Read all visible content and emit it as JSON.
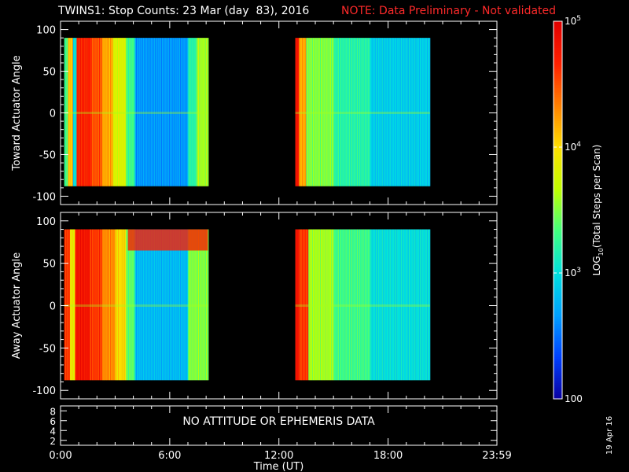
{
  "title": {
    "main": "TWINS1: Stop Counts: 23 Mar (day  83), 2016",
    "note": "NOTE: Data Preliminary - Not validated",
    "note_color": "#ff2a2a"
  },
  "side_date": "19 Apr 16",
  "x_axis": {
    "label": "Time (UT)",
    "ticks": [
      "0:00",
      "6:00",
      "12:00",
      "18:00",
      "23:59"
    ],
    "tick_values_hours": [
      0,
      6,
      12,
      18,
      23.98
    ],
    "range_hours": [
      0,
      23.98
    ]
  },
  "colorbar": {
    "label": "LOG10(Total Steps per Scan)",
    "label_base": "LOG",
    "label_sub": "10",
    "label_rest": "(Total Steps per Scan)",
    "scale": "log",
    "range": [
      100,
      100000
    ],
    "tick_labels": [
      {
        "base": "100",
        "exp": "",
        "value": 100
      },
      {
        "base": "10",
        "exp": "3",
        "value": 1000
      },
      {
        "base": "10",
        "exp": "4",
        "value": 10000
      },
      {
        "base": "10",
        "exp": "5",
        "value": 100000
      }
    ],
    "colormap": [
      "#0a00a0",
      "#0040ff",
      "#00a0ff",
      "#00e0e0",
      "#40ff80",
      "#c0ff00",
      "#ffe000",
      "#ff8000",
      "#ff2000",
      "#e00000"
    ]
  },
  "annotation": "NO ATTITUDE OR EPHEMERIS DATA",
  "chart_data": [
    {
      "type": "heatmap",
      "panel": "toward",
      "ylabel": "Toward Actuator Angle",
      "ylim": [
        -110,
        110
      ],
      "yticks": [
        100,
        50,
        0,
        -50,
        -100
      ],
      "data_extent_y": [
        -88,
        90
      ],
      "segments": [
        {
          "start": 0.2,
          "end": 8.1,
          "profile": [
            {
              "start": 0.2,
              "end": 0.4,
              "log": 3.3
            },
            {
              "start": 0.4,
              "end": 0.7,
              "log": 4.1
            },
            {
              "start": 0.7,
              "end": 0.9,
              "log": 3.0
            },
            {
              "start": 0.9,
              "end": 1.7,
              "log": 4.7
            },
            {
              "start": 1.7,
              "end": 2.3,
              "log": 4.5
            },
            {
              "start": 2.3,
              "end": 2.9,
              "log": 4.2
            },
            {
              "start": 2.9,
              "end": 3.6,
              "log": 3.8
            },
            {
              "start": 3.6,
              "end": 4.1,
              "log": 3.3
            },
            {
              "start": 4.1,
              "end": 7.0,
              "log": 2.65
            },
            {
              "start": 7.0,
              "end": 7.5,
              "log": 3.2
            },
            {
              "start": 7.5,
              "end": 8.1,
              "log": 3.6
            }
          ]
        },
        {
          "start": 12.9,
          "end": 20.3,
          "profile": [
            {
              "start": 12.9,
              "end": 13.1,
              "log": 4.8
            },
            {
              "start": 13.1,
              "end": 13.5,
              "log": 4.2
            },
            {
              "start": 13.5,
              "end": 15.0,
              "log": 3.5
            },
            {
              "start": 15.0,
              "end": 17.0,
              "log": 3.2
            },
            {
              "start": 17.0,
              "end": 20.3,
              "log": 2.9
            }
          ]
        }
      ]
    },
    {
      "type": "heatmap",
      "panel": "away",
      "ylabel": "Away Actuator Angle",
      "ylim": [
        -110,
        110
      ],
      "yticks": [
        100,
        50,
        0,
        -50,
        -100
      ],
      "data_extent_y": [
        -88,
        90
      ],
      "segments": [
        {
          "start": 0.2,
          "end": 8.1,
          "profile": [
            {
              "start": 0.2,
              "end": 0.5,
              "log": 4.6
            },
            {
              "start": 0.5,
              "end": 0.8,
              "log": 3.9
            },
            {
              "start": 0.8,
              "end": 1.6,
              "log": 4.8
            },
            {
              "start": 1.6,
              "end": 2.3,
              "log": 4.6
            },
            {
              "start": 2.3,
              "end": 3.0,
              "log": 4.3
            },
            {
              "start": 3.0,
              "end": 3.6,
              "log": 4.0
            },
            {
              "start": 3.6,
              "end": 4.1,
              "log": 3.4
            },
            {
              "start": 4.1,
              "end": 7.0,
              "log": 2.8
            },
            {
              "start": 7.0,
              "end": 8.1,
              "log": 3.5
            }
          ],
          "top_band": {
            "angle_min": 65,
            "angle_max": 90,
            "log": 4.7
          }
        },
        {
          "start": 12.9,
          "end": 20.3,
          "profile": [
            {
              "start": 12.9,
              "end": 13.1,
              "log": 4.8
            },
            {
              "start": 13.1,
              "end": 13.6,
              "log": 4.6
            },
            {
              "start": 13.6,
              "end": 15.0,
              "log": 3.6
            },
            {
              "start": 15.0,
              "end": 17.0,
              "log": 3.3
            },
            {
              "start": 17.0,
              "end": 20.3,
              "log": 3.0
            }
          ]
        }
      ]
    },
    {
      "type": "line",
      "panel": "attitude",
      "ylim": [
        1,
        9
      ],
      "yticks": [
        8,
        6,
        4,
        2
      ],
      "series": []
    }
  ]
}
